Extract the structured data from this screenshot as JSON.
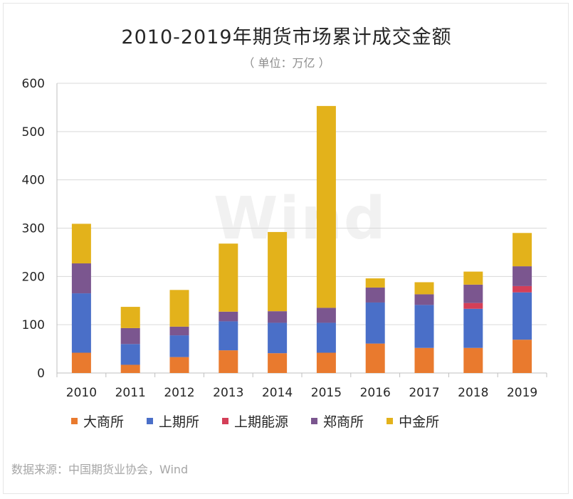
{
  "title": "2010-2019年期货市场累计成交金额",
  "subtitle": "（ 单位：万亿 ）",
  "watermark": "Wind",
  "source": "数据来源：中国期货业协会，Wind",
  "chart_data": {
    "type": "bar",
    "stacked": true,
    "categories": [
      "2010",
      "2011",
      "2012",
      "2013",
      "2014",
      "2015",
      "2016",
      "2017",
      "2018",
      "2019"
    ],
    "ylim": [
      0,
      600
    ],
    "yticks": [
      0,
      100,
      200,
      300,
      400,
      500,
      600
    ],
    "grid": true,
    "legend_position": "bottom",
    "series": [
      {
        "name": "大商所",
        "color": "#e97a2e",
        "values": [
          42,
          17,
          33,
          47,
          41,
          42,
          61,
          52,
          52,
          69
        ]
      },
      {
        "name": "上期所",
        "color": "#4a6fc8",
        "values": [
          123,
          43,
          45,
          60,
          63,
          62,
          85,
          89,
          81,
          98
        ]
      },
      {
        "name": "上期能源",
        "color": "#d43f58",
        "values": [
          0,
          0,
          0,
          0,
          0,
          0,
          0,
          0,
          12,
          13
        ]
      },
      {
        "name": "郑商所",
        "color": "#7b568f",
        "values": [
          62,
          33,
          18,
          20,
          24,
          31,
          31,
          22,
          38,
          41
        ]
      },
      {
        "name": "中金所",
        "color": "#e3b21b",
        "values": [
          82,
          44,
          76,
          141,
          164,
          418,
          19,
          25,
          27,
          69
        ]
      }
    ]
  }
}
